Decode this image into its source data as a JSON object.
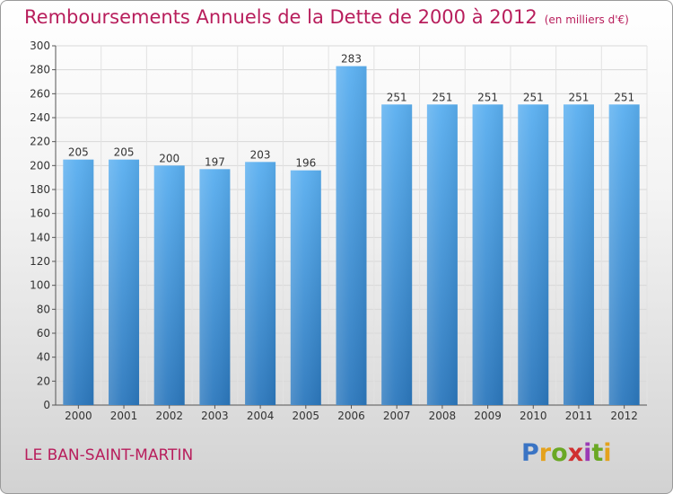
{
  "header": {
    "title": "Remboursements Annuels de la Dette de 2000 à 2012",
    "unit": "(en milliers d'€)"
  },
  "footer": {
    "town": "LE BAN-SAINT-MARTIN",
    "logo_text": "Proxiti"
  },
  "colors": {
    "title": "#b81e5c",
    "bar": "#4a9fe0",
    "bar_dark": "#2f7fc4"
  },
  "chart_data": {
    "type": "bar",
    "categories": [
      "2000",
      "2001",
      "2002",
      "2003",
      "2004",
      "2005",
      "2006",
      "2007",
      "2008",
      "2009",
      "2010",
      "2011",
      "2012"
    ],
    "values": [
      205,
      205,
      200,
      197,
      203,
      196,
      283,
      251,
      251,
      251,
      251,
      251,
      251
    ],
    "title": "Remboursements Annuels de la Dette de 2000 à 2012",
    "ylabel": "",
    "xlabel": "",
    "ylim": [
      0,
      300
    ],
    "yticks": [
      0,
      20,
      40,
      60,
      80,
      100,
      120,
      140,
      160,
      180,
      200,
      220,
      240,
      260,
      280,
      300
    ],
    "grid": true
  }
}
